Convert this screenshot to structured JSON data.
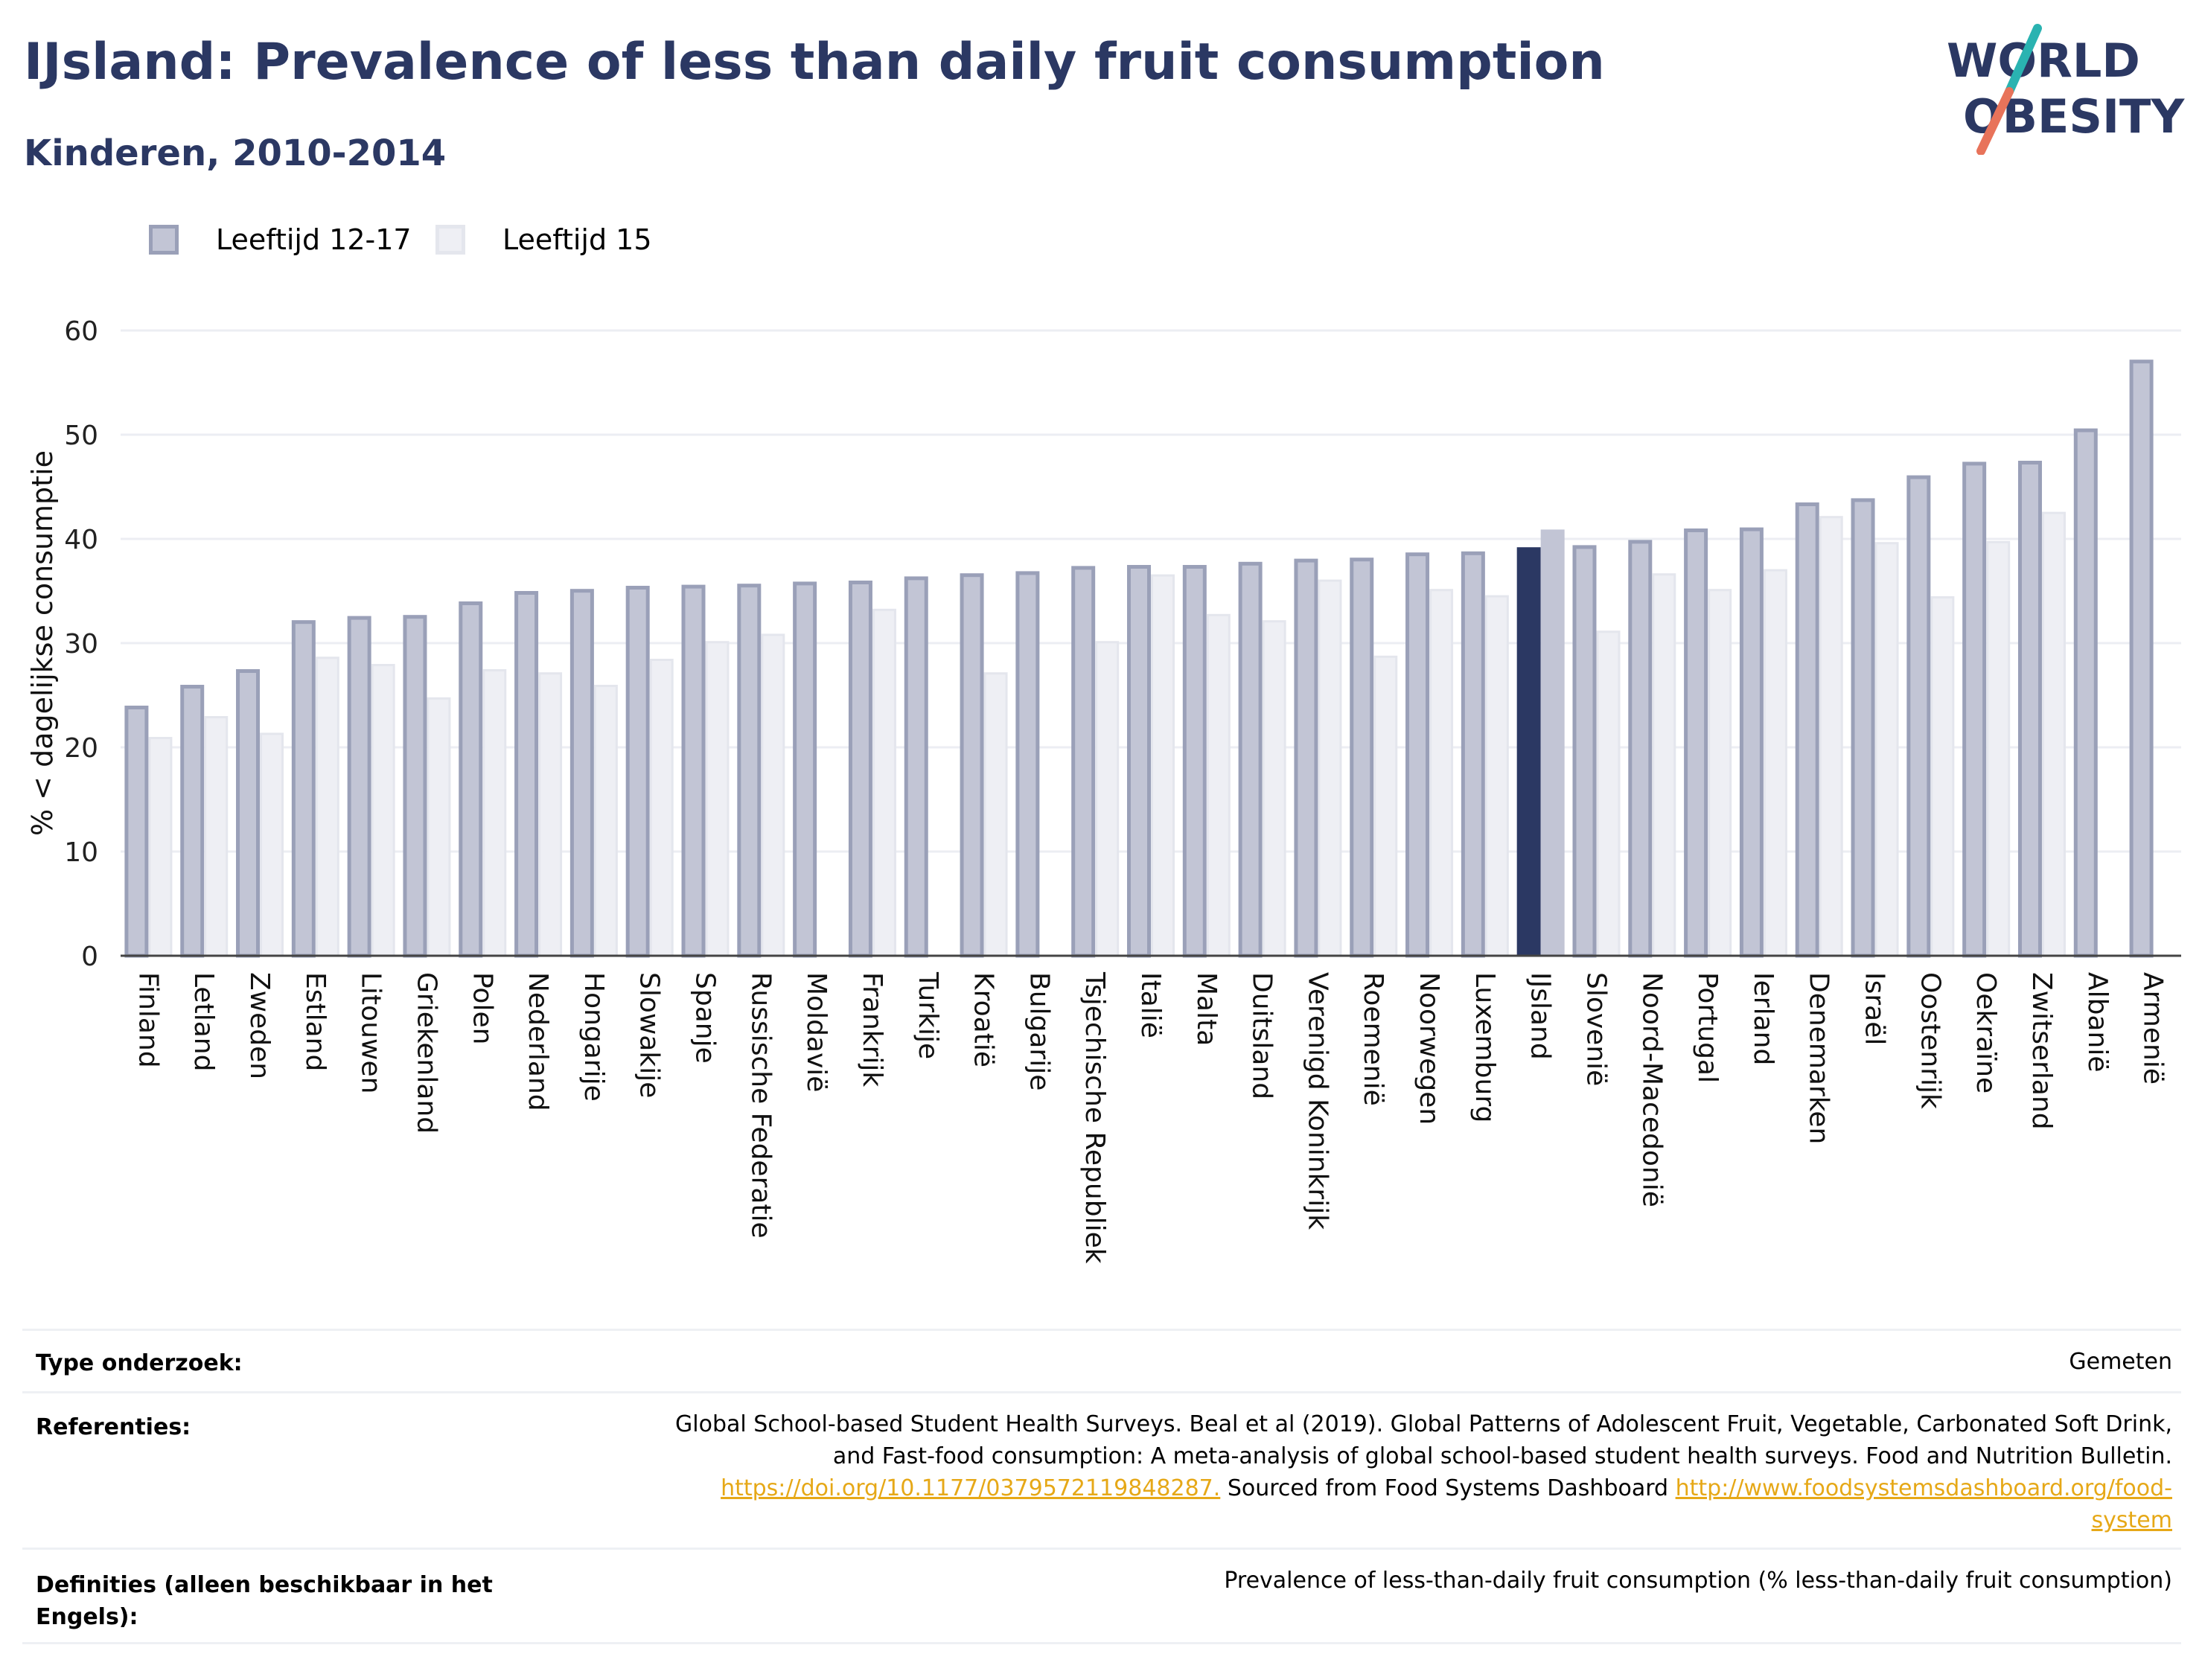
{
  "header": {
    "title": "IJsland: Prevalence of less than daily fruit consumption",
    "subtitle": "Kinderen, 2010-2014"
  },
  "logo": {
    "line1": "WORLD",
    "line2": "OBESITY",
    "colors": {
      "text": "#2b3863",
      "slash_teal": "#2ab3b1",
      "slash_coral": "#e8735a"
    }
  },
  "legend": {
    "items": [
      {
        "label": "Leeftijd 12-17",
        "series": 0
      },
      {
        "label": "Leeftijd 15",
        "series": 1
      }
    ]
  },
  "chart_data": {
    "type": "bar",
    "title": "",
    "xlabel": "",
    "ylabel": "% < dagelijkse consumptie",
    "ylim": [
      0,
      60
    ],
    "yticks": [
      0,
      10,
      20,
      30,
      40,
      50,
      60
    ],
    "grid": true,
    "legend_position": "top-left",
    "highlight_category": "IJsland",
    "categories": [
      "Finland",
      "Letland",
      "Zweden",
      "Estland",
      "Litouwen",
      "Griekenland",
      "Polen",
      "Nederland",
      "Hongarije",
      "Slowakije",
      "Spanje",
      "Russische Federatie",
      "Moldavië",
      "Frankrijk",
      "Turkije",
      "Kroatië",
      "Bulgarije",
      "Tsjechische Republiek",
      "Italië",
      "Malta",
      "Duitsland",
      "Verenigd Koninkrijk",
      "Roemenië",
      "Noorwegen",
      "Luxemburg",
      "IJsland",
      "Slovenië",
      "Noord-Macedonië",
      "Portugal",
      "Ierland",
      "Denemarken",
      "Israël",
      "Oostenrijk",
      "Oekraïne",
      "Zwitserland",
      "Albanië",
      "Armenië"
    ],
    "series": [
      {
        "name": "Leeftijd 12-17",
        "values": [
          24.0,
          26.0,
          27.5,
          32.2,
          32.6,
          32.7,
          34.0,
          35.0,
          35.2,
          35.5,
          35.6,
          35.7,
          35.9,
          36.0,
          36.4,
          36.7,
          36.9,
          37.4,
          37.5,
          37.5,
          37.8,
          38.1,
          38.2,
          38.7,
          38.8,
          39.2,
          39.4,
          39.9,
          41.0,
          41.1,
          43.5,
          43.9,
          46.1,
          47.4,
          47.5,
          50.6,
          57.2
        ]
      },
      {
        "name": "Leeftijd 15",
        "values": [
          21.0,
          23.0,
          21.4,
          28.7,
          28.0,
          24.8,
          27.5,
          27.2,
          26.0,
          28.5,
          30.2,
          30.9,
          null,
          33.3,
          null,
          27.2,
          null,
          30.2,
          36.6,
          32.8,
          32.2,
          36.1,
          28.8,
          35.2,
          34.6,
          40.9,
          31.2,
          36.7,
          35.2,
          37.1,
          42.2,
          39.7,
          34.5,
          39.8,
          42.6,
          null,
          null
        ]
      }
    ],
    "colors": {
      "series0_fill": "#c2c5d5",
      "series0_stroke": "#9aa0b8",
      "series1_fill": "#eeeff4",
      "series1_stroke": "#e4e6ed",
      "highlight0": "#2b3863",
      "highlight1": "#c2c5d5",
      "grid": "#eceef3",
      "axis": "#444444"
    }
  },
  "info": {
    "type_label": "Type onderzoek:",
    "type_value": "Gemeten",
    "ref_label": "Referenties:",
    "ref_text1": "Global School-based Student Health Surveys. Beal et al (2019). Global Patterns of Adolescent Fruit, Vegetable, Carbonated Soft Drink,",
    "ref_text2": "and Fast-food consumption: A meta-analysis of global school-based student health surveys. Food and Nutrition Bulletin.",
    "ref_link1": "https://doi.org/10.1177/0379572119848287.",
    "ref_text3": " Sourced from Food Systems Dashboard ",
    "ref_link2a": "http://www.foodsystemsdashboard.org/food-",
    "ref_link2b": "system",
    "def_label1": "Definities (alleen beschikbaar in het",
    "def_label2": "Engels):",
    "def_value": "Prevalence of less-than-daily fruit consumption (% less-than-daily fruit consumption)"
  }
}
